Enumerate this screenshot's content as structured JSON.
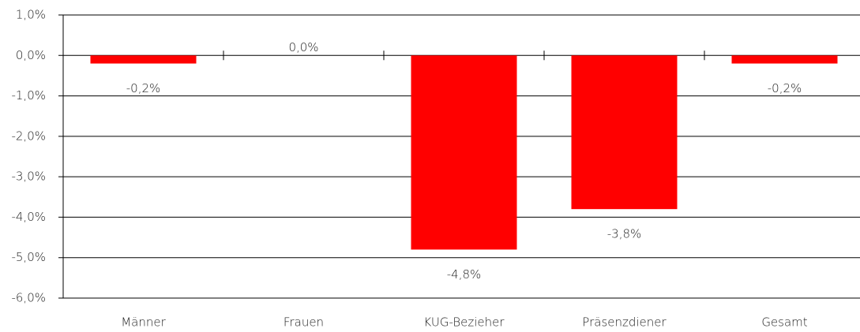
{
  "chart_data": {
    "type": "bar",
    "categories": [
      "Männer",
      "Frauen",
      "KUG-Bezieher",
      "Präsenzdiener",
      "Gesamt"
    ],
    "values": [
      -0.2,
      0.0,
      -4.8,
      -3.8,
      -0.2
    ],
    "value_labels": [
      "-0,2%",
      "0,0%",
      "-4,8%",
      "-3,8%",
      "-0,2%"
    ],
    "color": "#ff0000",
    "ylim": [
      -6,
      1
    ],
    "yticks": [
      {
        "value": -6,
        "label": "-6,0%"
      },
      {
        "value": -5,
        "label": "-5,0%"
      },
      {
        "value": -4,
        "label": "-4,0%"
      },
      {
        "value": -3,
        "label": "-3,0%"
      },
      {
        "value": -2,
        "label": "-2,0%"
      },
      {
        "value": -1,
        "label": "-1,0%"
      },
      {
        "value": 0,
        "label": "0,0%"
      },
      {
        "value": 1,
        "label": "1,0%"
      }
    ],
    "grid": true
  }
}
